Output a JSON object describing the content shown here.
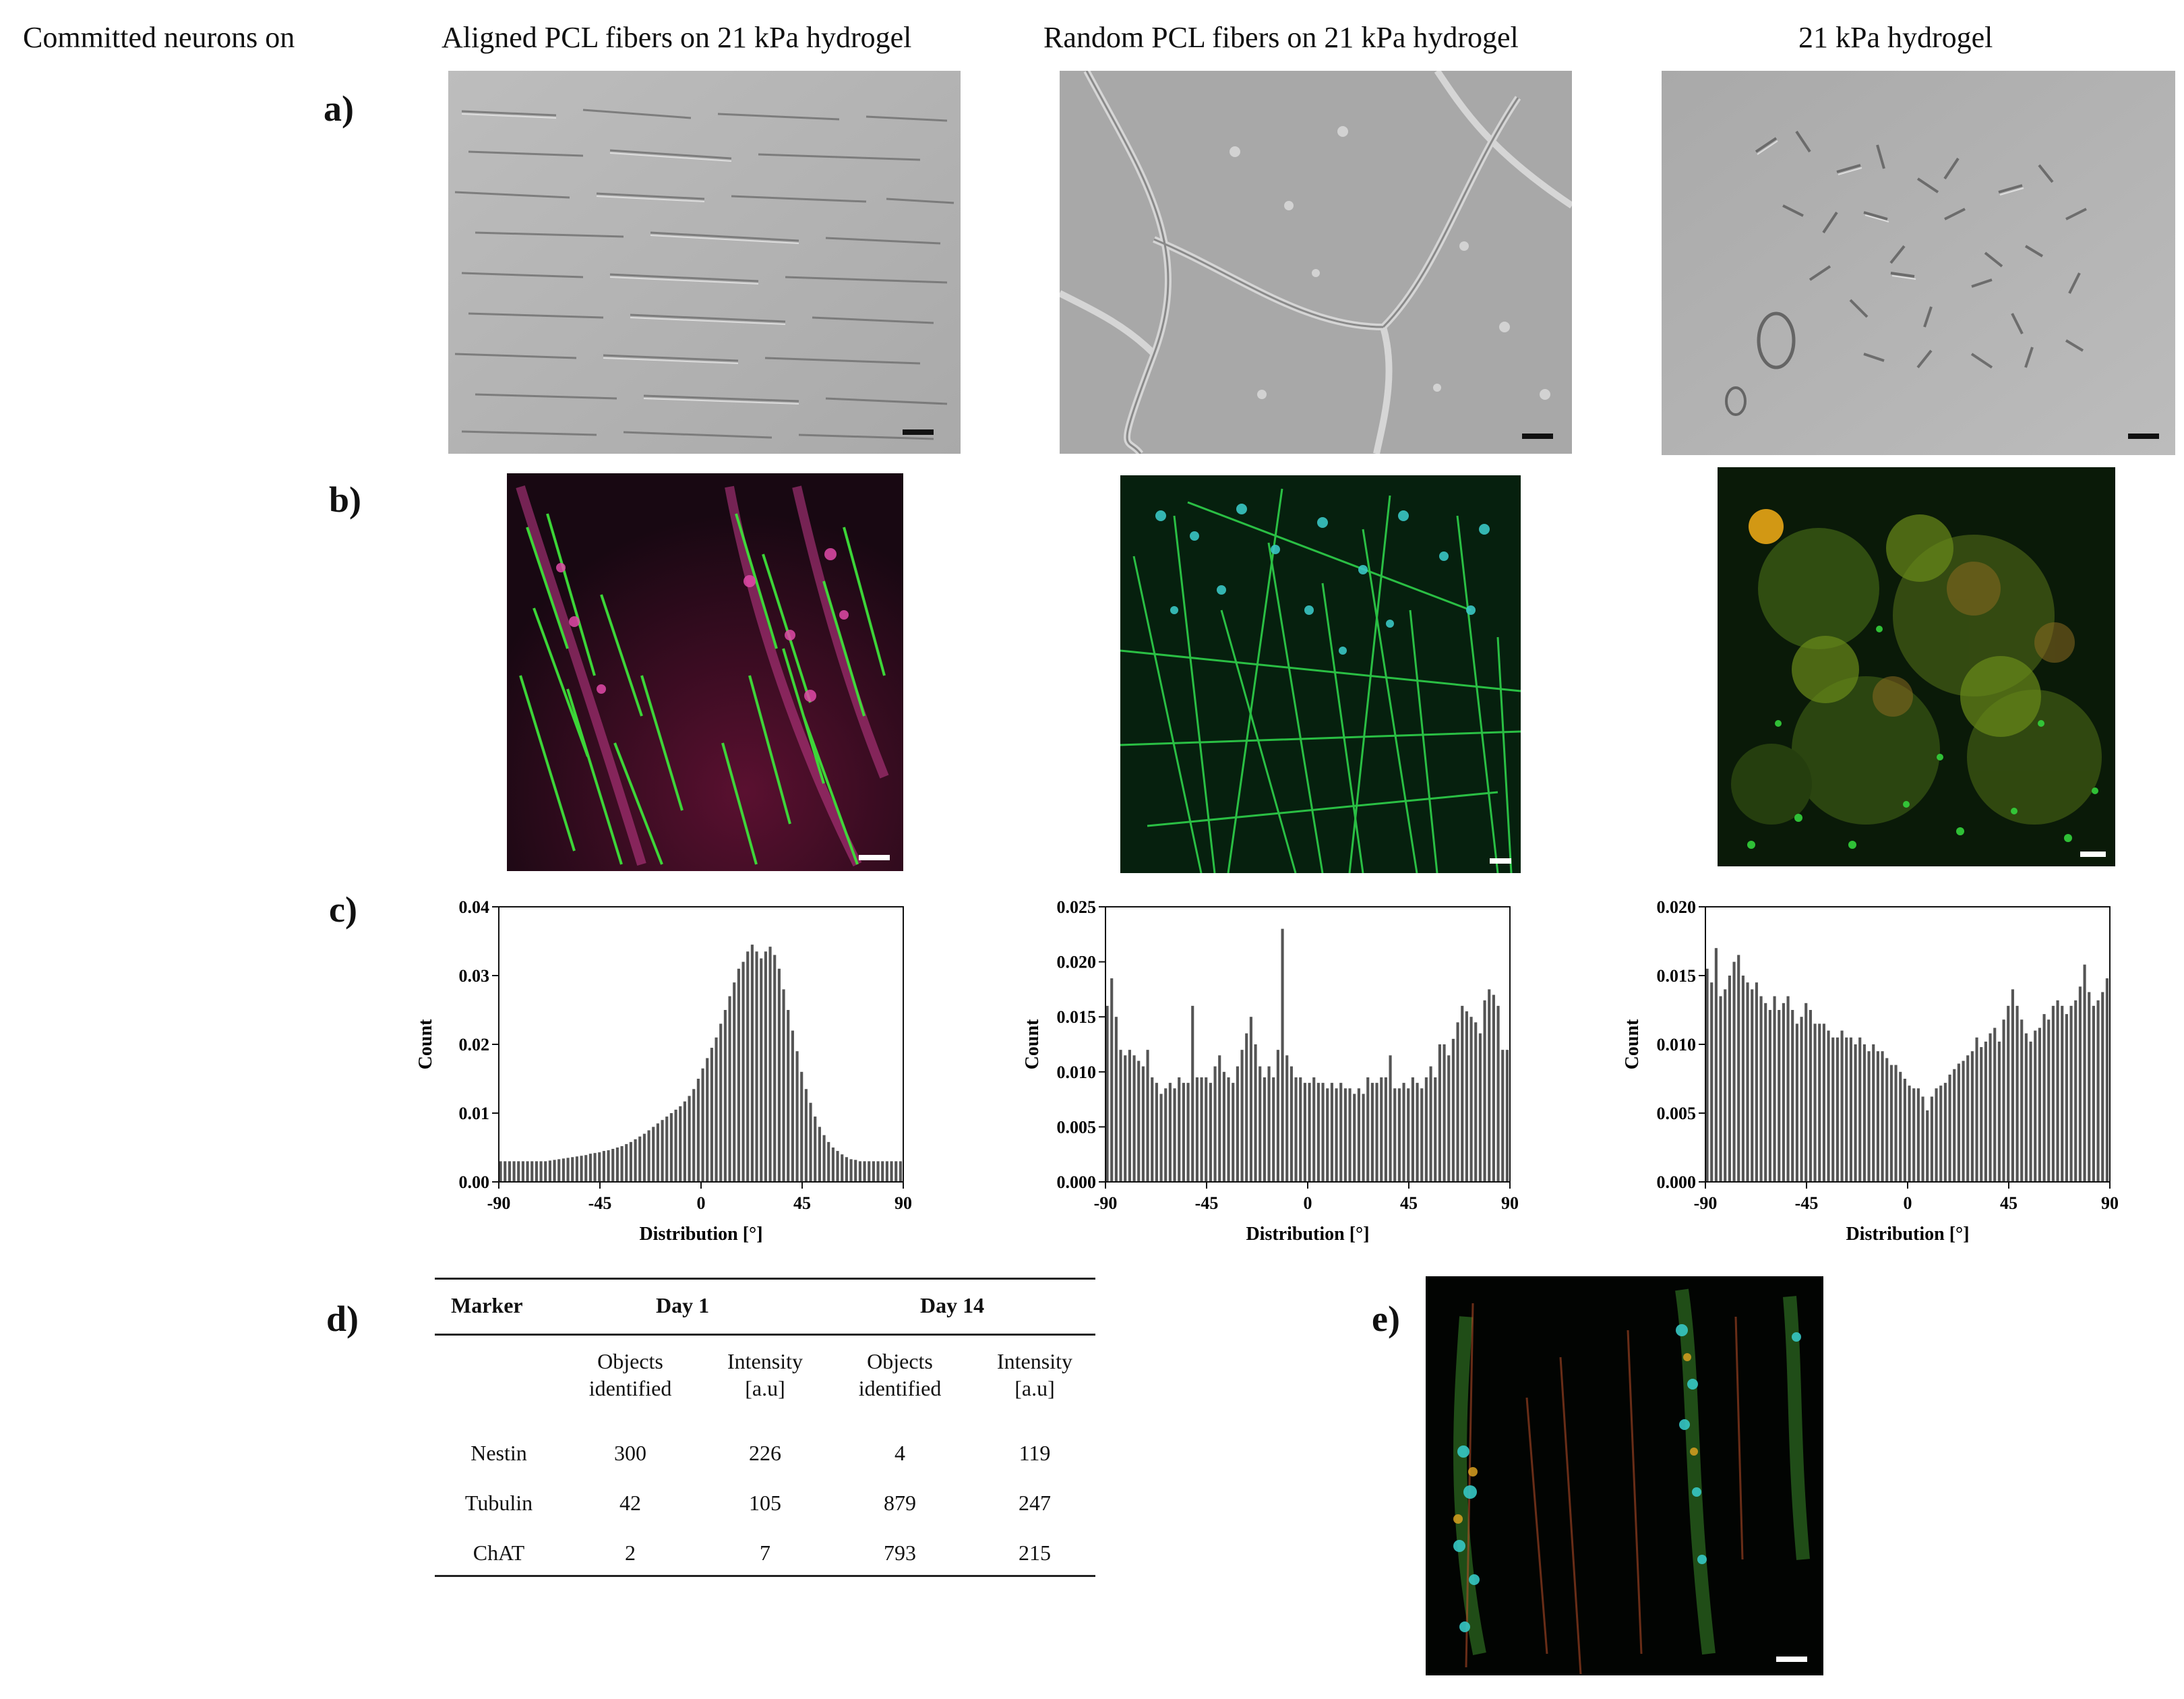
{
  "header": {
    "row_title": "Committed neurons on",
    "columns": [
      "Aligned PCL fibers on 21 kPa hydrogel",
      "Random PCL fibers on 21 kPa hydrogel",
      "21 kPa hydrogel"
    ]
  },
  "row_labels": {
    "a": "a)",
    "b": "b)",
    "c": "c)",
    "d": "d)",
    "e": "e)"
  },
  "chart_data": [
    {
      "type": "bar",
      "xlabel": "Distribution [°]",
      "ylabel": "Count",
      "xlim": [
        -90,
        90
      ],
      "ylim": [
        0,
        0.04
      ],
      "xticks": [
        "-90",
        "-45",
        "0",
        "45",
        "90"
      ],
      "yticks": [
        "0.00",
        "0.01",
        "0.02",
        "0.03",
        "0.04"
      ],
      "bin_width_deg": 2,
      "values": [
        0.003,
        0.003,
        0.003,
        0.003,
        0.003,
        0.003,
        0.003,
        0.003,
        0.003,
        0.003,
        0.003,
        0.0031,
        0.0032,
        0.0033,
        0.0034,
        0.0035,
        0.0036,
        0.0037,
        0.0038,
        0.0039,
        0.0041,
        0.0042,
        0.0043,
        0.0045,
        0.0046,
        0.0048,
        0.005,
        0.0052,
        0.0055,
        0.0058,
        0.0062,
        0.0066,
        0.007,
        0.0075,
        0.008,
        0.0085,
        0.009,
        0.0095,
        0.01,
        0.0105,
        0.011,
        0.0117,
        0.0125,
        0.0135,
        0.015,
        0.0165,
        0.018,
        0.0195,
        0.021,
        0.023,
        0.025,
        0.027,
        0.029,
        0.031,
        0.032,
        0.0335,
        0.0345,
        0.0335,
        0.0325,
        0.0335,
        0.0342,
        0.033,
        0.031,
        0.028,
        0.025,
        0.022,
        0.019,
        0.016,
        0.0135,
        0.0115,
        0.0095,
        0.008,
        0.0068,
        0.0058,
        0.005,
        0.0045,
        0.004,
        0.0036,
        0.0033,
        0.0032,
        0.003,
        0.003,
        0.003,
        0.003,
        0.003,
        0.003,
        0.003,
        0.003,
        0.003,
        0.003
      ]
    },
    {
      "type": "bar",
      "xlabel": "Distribution [°]",
      "ylabel": "Count",
      "xlim": [
        -90,
        90
      ],
      "ylim": [
        0,
        0.025
      ],
      "xticks": [
        "-90",
        "-45",
        "0",
        "45",
        "90"
      ],
      "yticks": [
        "0.000",
        "0.005",
        "0.010",
        "0.015",
        "0.020",
        "0.025"
      ],
      "bin_width_deg": 2,
      "values": [
        0.016,
        0.0185,
        0.015,
        0.012,
        0.0115,
        0.012,
        0.0115,
        0.011,
        0.0105,
        0.012,
        0.0095,
        0.009,
        0.008,
        0.0085,
        0.009,
        0.0085,
        0.0095,
        0.009,
        0.009,
        0.016,
        0.0095,
        0.0095,
        0.0095,
        0.009,
        0.0105,
        0.0115,
        0.01,
        0.0095,
        0.009,
        0.0105,
        0.012,
        0.0135,
        0.015,
        0.0125,
        0.0105,
        0.0095,
        0.0105,
        0.0095,
        0.012,
        0.023,
        0.0115,
        0.0105,
        0.0095,
        0.0095,
        0.009,
        0.009,
        0.0095,
        0.009,
        0.009,
        0.0085,
        0.009,
        0.0085,
        0.009,
        0.0085,
        0.0085,
        0.008,
        0.0085,
        0.008,
        0.0095,
        0.009,
        0.009,
        0.0095,
        0.0095,
        0.0115,
        0.0085,
        0.0085,
        0.009,
        0.0085,
        0.0095,
        0.009,
        0.0085,
        0.0095,
        0.0105,
        0.0095,
        0.0125,
        0.0125,
        0.0115,
        0.013,
        0.0145,
        0.016,
        0.0155,
        0.015,
        0.0145,
        0.0135,
        0.0165,
        0.0175,
        0.017,
        0.016,
        0.012,
        0.012
      ]
    },
    {
      "type": "bar",
      "xlabel": "Distribution [°]",
      "ylabel": "Count",
      "xlim": [
        -90,
        90
      ],
      "ylim": [
        0,
        0.02
      ],
      "xticks": [
        "-90",
        "-45",
        "0",
        "45",
        "90"
      ],
      "yticks": [
        "0.000",
        "0.005",
        "0.010",
        "0.015",
        "0.020"
      ],
      "bin_width_deg": 2,
      "values": [
        0.0155,
        0.0145,
        0.017,
        0.0135,
        0.014,
        0.015,
        0.016,
        0.0165,
        0.015,
        0.0145,
        0.014,
        0.0145,
        0.0135,
        0.013,
        0.0125,
        0.0135,
        0.0125,
        0.013,
        0.0135,
        0.0125,
        0.0115,
        0.012,
        0.013,
        0.0125,
        0.0115,
        0.0115,
        0.0115,
        0.011,
        0.0105,
        0.0105,
        0.011,
        0.0105,
        0.0105,
        0.01,
        0.0105,
        0.01,
        0.0095,
        0.01,
        0.0095,
        0.0095,
        0.009,
        0.0085,
        0.0085,
        0.008,
        0.0075,
        0.007,
        0.0068,
        0.0068,
        0.0062,
        0.0052,
        0.0062,
        0.0068,
        0.007,
        0.0072,
        0.0078,
        0.0082,
        0.0086,
        0.0088,
        0.0092,
        0.0095,
        0.0105,
        0.0098,
        0.0102,
        0.0108,
        0.0112,
        0.0102,
        0.0118,
        0.0128,
        0.014,
        0.0128,
        0.0118,
        0.0108,
        0.0102,
        0.011,
        0.0112,
        0.0122,
        0.0118,
        0.0128,
        0.0132,
        0.0128,
        0.0122,
        0.0128,
        0.0132,
        0.0142,
        0.0158,
        0.0138,
        0.0128,
        0.0132,
        0.0138,
        0.0148
      ]
    }
  ],
  "table": {
    "headers": {
      "marker": "Marker",
      "day1": "Day 1",
      "day14": "Day 14"
    },
    "subheaders": {
      "objects": [
        "Objects",
        "identified"
      ],
      "intensity": [
        "Intensity",
        "[a.u]"
      ]
    },
    "rows": [
      {
        "marker": "Nestin",
        "d1_objects": "300",
        "d1_intensity": "226",
        "d14_objects": "4",
        "d14_intensity": "119"
      },
      {
        "marker": "Tubulin",
        "d1_objects": "42",
        "d1_intensity": "105",
        "d14_objects": "879",
        "d14_intensity": "247"
      },
      {
        "marker": "ChAT",
        "d1_objects": "2",
        "d1_intensity": "7",
        "d14_objects": "793",
        "d14_intensity": "215"
      }
    ]
  }
}
